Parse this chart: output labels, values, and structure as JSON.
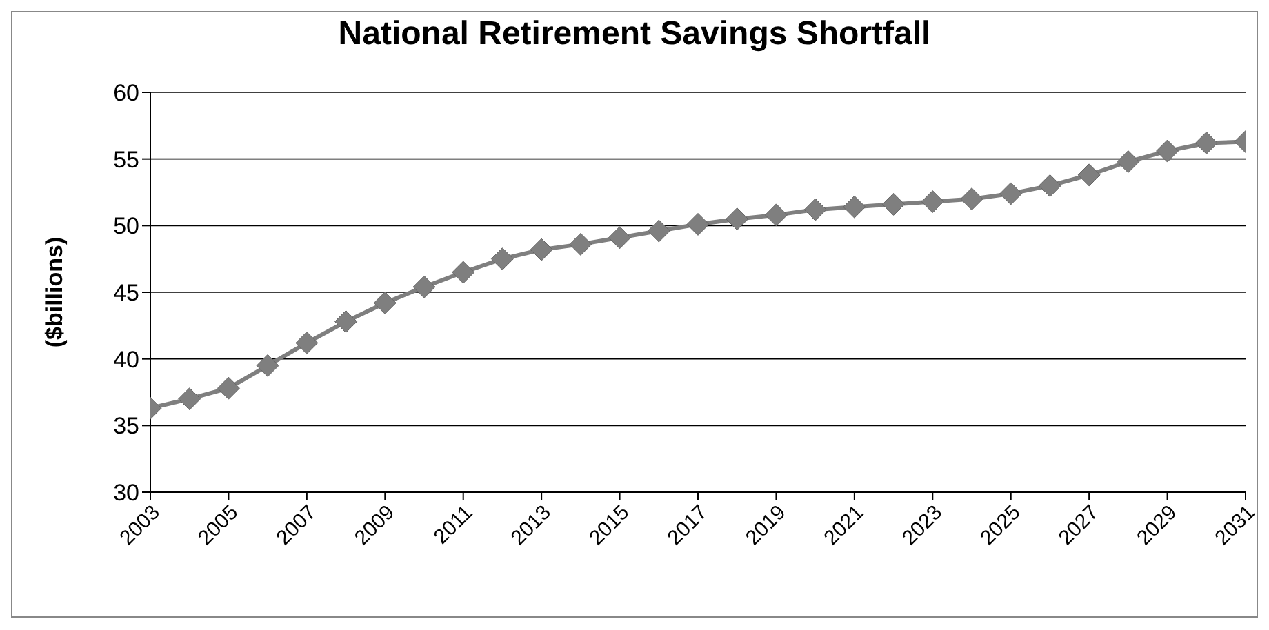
{
  "chart_data": {
    "type": "line",
    "title": "National Retirement Savings Shortfall",
    "ylabel": "($billions)",
    "x": [
      2003,
      2004,
      2005,
      2006,
      2007,
      2008,
      2009,
      2010,
      2011,
      2012,
      2013,
      2014,
      2015,
      2016,
      2017,
      2018,
      2019,
      2020,
      2021,
      2022,
      2023,
      2024,
      2025,
      2026,
      2027,
      2028,
      2029,
      2030,
      2031
    ],
    "series": [
      {
        "color": "#7f7f7f",
        "values": [
          36.3,
          37.0,
          37.8,
          39.5,
          41.2,
          42.8,
          44.2,
          45.4,
          46.5,
          47.5,
          48.2,
          48.6,
          49.1,
          49.6,
          50.1,
          50.5,
          50.8,
          51.2,
          51.4,
          51.6,
          51.8,
          52.0,
          52.4,
          53.0,
          53.8,
          54.8,
          55.6,
          56.2,
          56.3
        ]
      }
    ],
    "xlim": [
      2003,
      2031
    ],
    "xticks": [
      2003,
      2005,
      2007,
      2009,
      2011,
      2013,
      2015,
      2017,
      2019,
      2021,
      2023,
      2025,
      2027,
      2029,
      2031
    ],
    "ylim": [
      30,
      60
    ],
    "yticks": [
      30,
      35,
      40,
      45,
      50,
      55,
      60
    ],
    "grid": "y",
    "marker": "diamond",
    "line_style": "solid",
    "legend": false
  }
}
